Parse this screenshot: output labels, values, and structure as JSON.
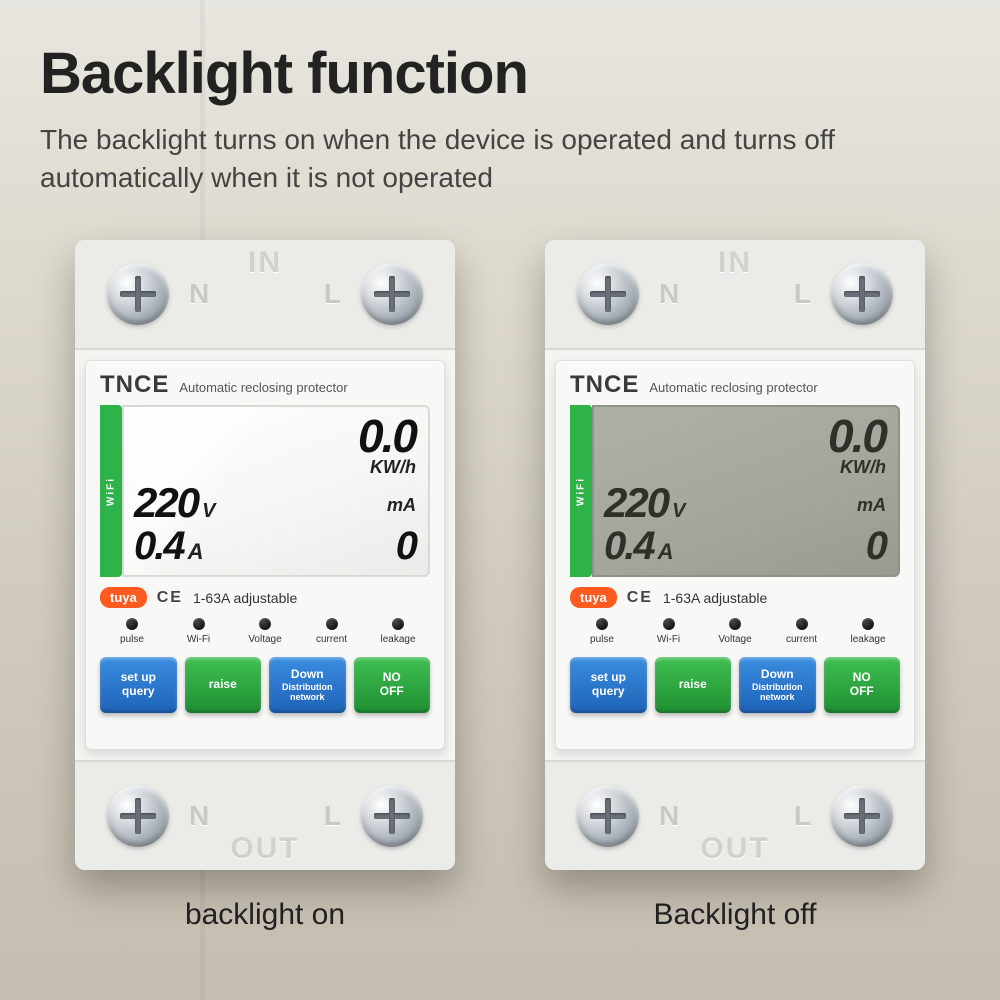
{
  "header": {
    "title": "Backlight function",
    "subtitle": "The backlight turns on when the device is operated and turns off automatically when it is not operated"
  },
  "captions": {
    "on": "backlight on",
    "off": "Backlight off"
  },
  "terminal": {
    "n": "N",
    "l": "L",
    "in": "IN",
    "out": "OUT"
  },
  "brand": {
    "name": "TNCE",
    "sub": "Automatic reclosing protector",
    "wifi": "WiFi"
  },
  "lcd": {
    "kwh_val": "0.0",
    "kwh_unit": "KW/h",
    "v_val": "220",
    "v_unit": "V",
    "ma_unit": "mA",
    "a_val": "0.4",
    "a_unit": "A",
    "ma_val": "0"
  },
  "badges": {
    "tuya": "tuya",
    "ce": "CE",
    "adjustable": "1-63A adjustable"
  },
  "leds": {
    "l0": "pulse",
    "l1": "Wi-Fi",
    "l2": "Voltage",
    "l3": "current",
    "l4": "leakage"
  },
  "buttons": {
    "b0a": "set up",
    "b0b": "query",
    "b1a": "raise",
    "b2a": "Down",
    "b2b": "Distribution network",
    "b3a": "NO",
    "b3b": "OFF"
  },
  "colors": {
    "blue": "#2a73c9",
    "green": "#2fa53f",
    "tuya": "#ff5a1f",
    "lcd_on": "#f5f8f4",
    "lcd_off": "#a6a99e"
  }
}
